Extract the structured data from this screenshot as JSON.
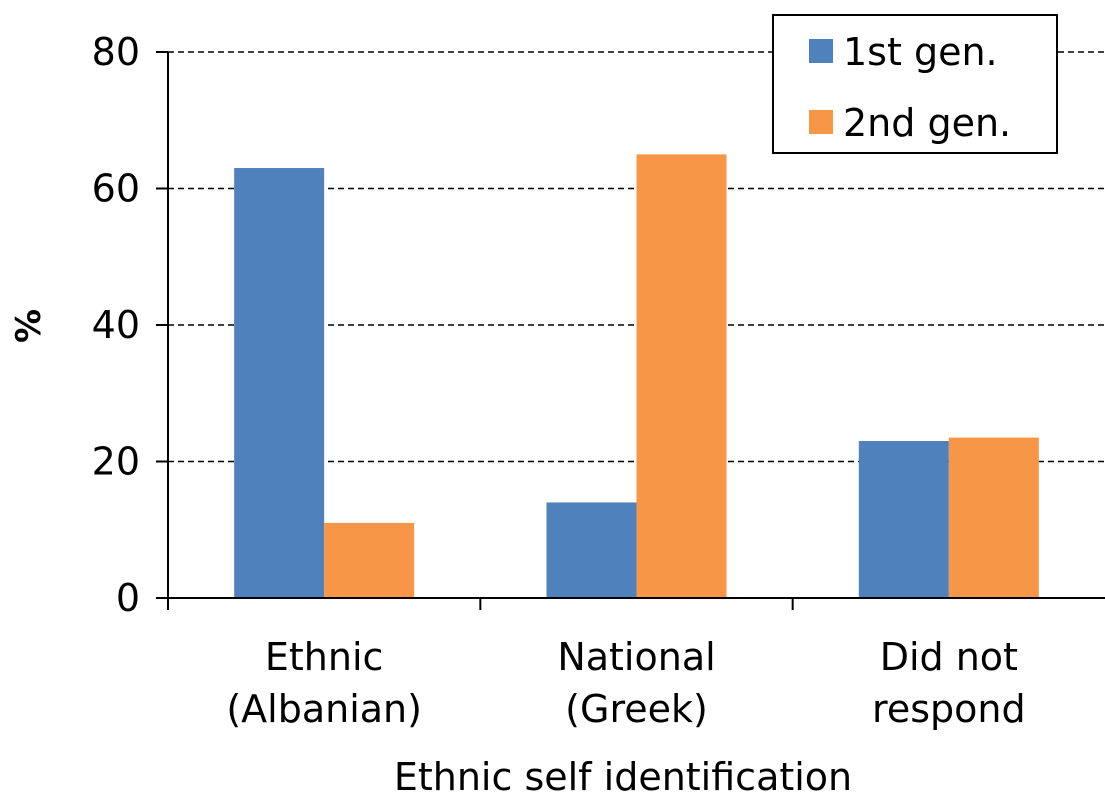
{
  "chart_data": {
    "type": "bar",
    "categories": [
      [
        "Ethnic",
        "(Albanian)"
      ],
      [
        "National",
        "(Greek)"
      ],
      [
        "Did not",
        "respond"
      ]
    ],
    "series": [
      {
        "name": "1st gen.",
        "color": "#4F81BD",
        "values": [
          63,
          14,
          23
        ]
      },
      {
        "name": "2nd gen.",
        "color": "#F79646",
        "values": [
          11,
          65,
          23.5
        ]
      }
    ],
    "xlabel": "Ethnic self identification",
    "ylabel": "%",
    "ylim": [
      0,
      80
    ],
    "yticks": [
      0,
      20,
      40,
      60,
      80
    ],
    "grid": true,
    "legend_position": "top-right"
  }
}
